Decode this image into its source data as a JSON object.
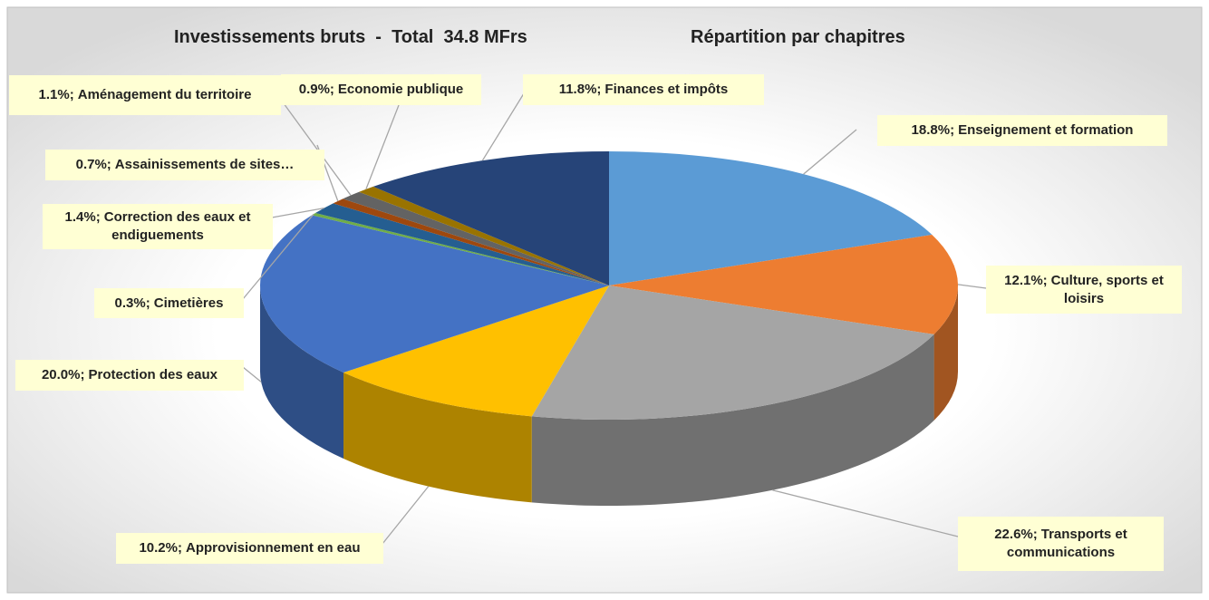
{
  "chart_data": {
    "type": "pie",
    "title": "Investissements bruts  -  Total  34.8 MFrs",
    "subtitle": "Répartition par chapitres",
    "categories": [
      "Enseignement et formation",
      "Culture, sports et loisirs",
      "Transports et communications",
      "Approvisionnement  en eau",
      "Protection des eaux",
      "Cimetières",
      "Correction des eaux et endiguements",
      "Assainissements de sites…",
      "Aménagement du territoire",
      "Economie publique",
      "Finances et impôts"
    ],
    "values": [
      18.8,
      12.1,
      22.6,
      10.2,
      20.0,
      0.3,
      1.4,
      0.7,
      1.1,
      0.9,
      11.8
    ],
    "value_labels": [
      "18.8%;",
      "12.1%;",
      "22.6%;",
      "10.2%;",
      "20.0%;",
      "0.3%;",
      "1.4%;",
      "0.7%;",
      "1.1%;",
      "0.9%;",
      "11.8%;"
    ],
    "colors": [
      "#5b9bd5",
      "#ed7d31",
      "#a5a5a5",
      "#ffc000",
      "#4472c4",
      "#70ad47",
      "#255e91",
      "#9e480e",
      "#636363",
      "#997300",
      "#264478"
    ]
  }
}
